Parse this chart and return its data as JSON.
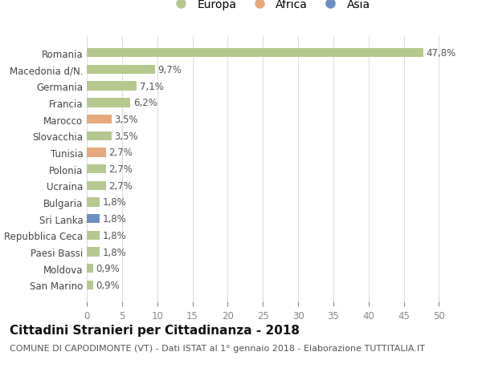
{
  "categories": [
    "San Marino",
    "Moldova",
    "Paesi Bassi",
    "Repubblica Ceca",
    "Sri Lanka",
    "Bulgaria",
    "Ucraina",
    "Polonia",
    "Tunisia",
    "Slovacchia",
    "Marocco",
    "Francia",
    "Germania",
    "Macedonia d/N.",
    "Romania"
  ],
  "values": [
    0.9,
    0.9,
    1.8,
    1.8,
    1.8,
    1.8,
    2.7,
    2.7,
    2.7,
    3.5,
    3.5,
    6.2,
    7.1,
    9.7,
    47.8
  ],
  "labels": [
    "0,9%",
    "0,9%",
    "1,8%",
    "1,8%",
    "1,8%",
    "1,8%",
    "2,7%",
    "2,7%",
    "2,7%",
    "3,5%",
    "3,5%",
    "6,2%",
    "7,1%",
    "9,7%",
    "47,8%"
  ],
  "colors": [
    "#b5c98e",
    "#b5c98e",
    "#b5c98e",
    "#b5c98e",
    "#6b8fc2",
    "#b5c98e",
    "#b5c98e",
    "#b5c98e",
    "#e8a87c",
    "#b5c98e",
    "#e8a87c",
    "#b5c98e",
    "#b5c98e",
    "#b5c98e",
    "#b5c98e"
  ],
  "legend": [
    {
      "label": "Europa",
      "color": "#b5c98e"
    },
    {
      "label": "Africa",
      "color": "#e8a87c"
    },
    {
      "label": "Asia",
      "color": "#6b8fc2"
    }
  ],
  "xlim": [
    0,
    52
  ],
  "xticks": [
    0,
    5,
    10,
    15,
    20,
    25,
    30,
    35,
    40,
    45,
    50
  ],
  "title": "Cittadini Stranieri per Cittadinanza - 2018",
  "subtitle": "COMUNE DI CAPODIMONTE (VT) - Dati ISTAT al 1° gennaio 2018 - Elaborazione TUTTITALIA.IT",
  "background_color": "#ffffff",
  "grid_color": "#dddddd",
  "bar_height": 0.55,
  "title_fontsize": 11,
  "subtitle_fontsize": 8,
  "label_fontsize": 8.5,
  "tick_fontsize": 8.5,
  "legend_fontsize": 10
}
